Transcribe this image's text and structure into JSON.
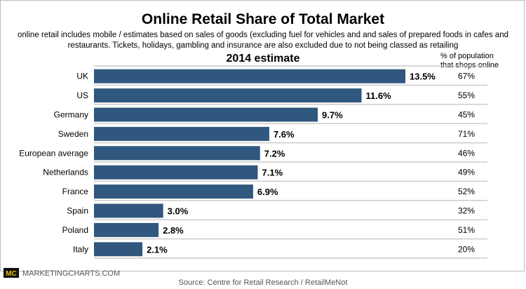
{
  "chart_data": {
    "type": "bar",
    "orientation": "horizontal",
    "title": "Online Retail Share of Total Market",
    "subtitle_lines": [
      "online retail includes mobile / estimates based on sales of goods (excluding fuel for vehicles and and sales of prepared foods in cafes and",
      "restaurants. Tickets, holidays, gambling and insurance are also excluded due to not being classed as retailing"
    ],
    "series_title": "2014 estimate",
    "side_column_header": [
      "% of population",
      "that shops online"
    ],
    "categories": [
      "UK",
      "US",
      "Germany",
      "Sweden",
      "European average",
      "Netherlands",
      "France",
      "Spain",
      "Poland",
      "Italy"
    ],
    "values": [
      13.5,
      11.6,
      9.7,
      7.6,
      7.2,
      7.1,
      6.9,
      3.0,
      2.8,
      2.1
    ],
    "value_labels": [
      "13.5%",
      "11.6%",
      "9.7%",
      "7.6%",
      "7.2%",
      "7.1%",
      "6.9%",
      "3.0%",
      "2.8%",
      "2.1%"
    ],
    "side_column_values": [
      "67%",
      "55%",
      "45%",
      "71%",
      "46%",
      "49%",
      "52%",
      "32%",
      "51%",
      "20%"
    ],
    "xlim": [
      0,
      13.5
    ],
    "bar_color": "#30577d",
    "grid": false
  },
  "branding": {
    "logo": "MC",
    "site": "MARKETINGCHARTS.COM"
  },
  "source": "Source: Centre for Retail Research / RetailMeNot"
}
